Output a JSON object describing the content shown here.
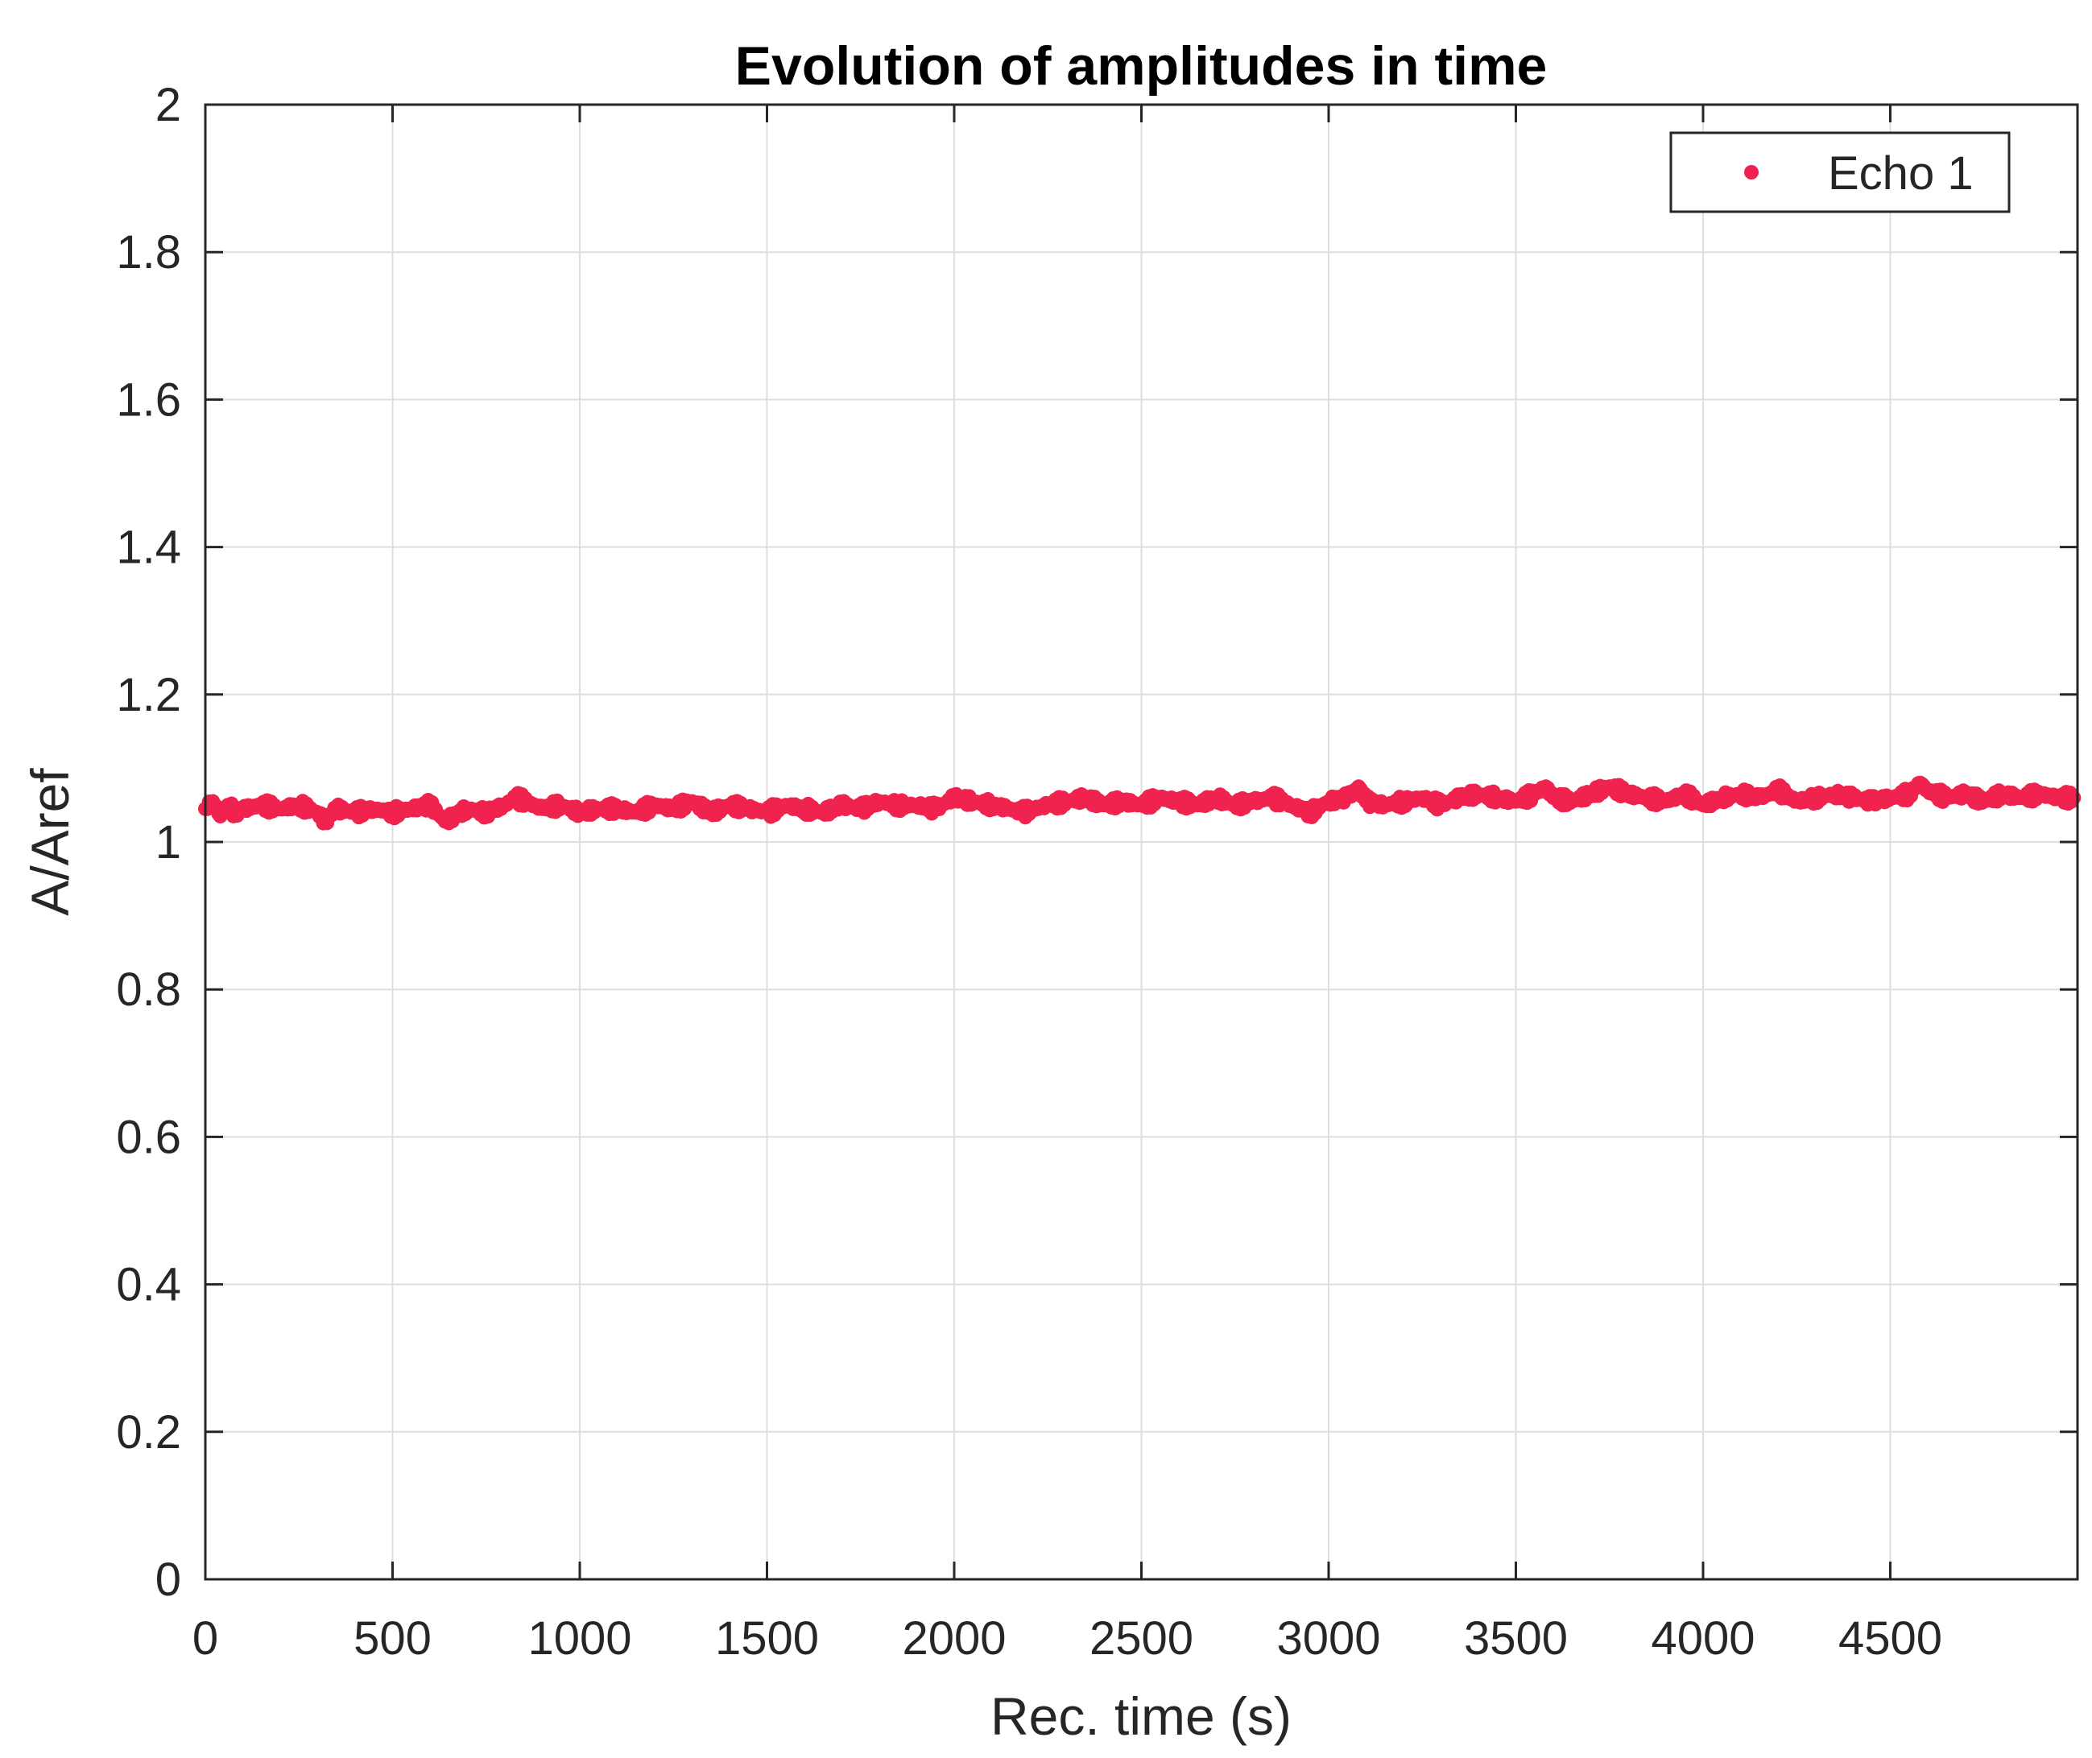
{
  "chart_data": {
    "type": "scatter",
    "title": "Evolution of amplitudes in time",
    "xlabel": "Rec. time (s)",
    "ylabel": "A/Aref",
    "xlim": [
      0,
      5000
    ],
    "ylim": [
      0,
      2
    ],
    "xticks": [
      0,
      500,
      1000,
      1500,
      2000,
      2500,
      3000,
      3500,
      4000,
      4500
    ],
    "xtick_labels": [
      "0",
      "500",
      "1000",
      "1500",
      "2000",
      "2500",
      "3000",
      "3500",
      "4000",
      "4500"
    ],
    "yticks": [
      0,
      0.2,
      0.4,
      0.6,
      0.8,
      1,
      1.2,
      1.4,
      1.6,
      1.8,
      2
    ],
    "ytick_labels": [
      "0",
      "0.2",
      "0.4",
      "0.6",
      "0.8",
      "1",
      "1.2",
      "1.4",
      "1.6",
      "1.8",
      "2"
    ],
    "grid": true,
    "legend_position": "top-right",
    "series": [
      {
        "name": "Echo 1",
        "color": "#f0224e",
        "x": [
          0,
          20,
          40,
          60,
          80,
          100,
          150,
          200,
          250,
          300,
          320,
          350,
          400,
          450,
          500,
          550,
          600,
          640,
          700,
          750,
          800,
          830,
          900,
          950,
          1000,
          1050,
          1100,
          1150,
          1200,
          1250,
          1300,
          1350,
          1400,
          1450,
          1500,
          1550,
          1600,
          1650,
          1700,
          1750,
          1800,
          1850,
          1900,
          1950,
          2000,
          2050,
          2100,
          2150,
          2180,
          2250,
          2300,
          2350,
          2400,
          2450,
          2500,
          2550,
          2600,
          2650,
          2700,
          2750,
          2800,
          2850,
          2900,
          2950,
          3000,
          3050,
          3080,
          3100,
          3150,
          3200,
          3250,
          3300,
          3350,
          3400,
          3450,
          3500,
          3550,
          3580,
          3600,
          3650,
          3700,
          3750,
          3800,
          3850,
          3900,
          3950,
          4000,
          4050,
          4100,
          4150,
          4200,
          4250,
          4300,
          4350,
          4400,
          4450,
          4500,
          4550,
          4580,
          4600,
          4650,
          4700,
          4750,
          4800,
          4850,
          4900,
          4950,
          4990
        ],
        "y": [
          1.045,
          1.055,
          1.035,
          1.05,
          1.04,
          1.045,
          1.05,
          1.045,
          1.05,
          1.04,
          1.028,
          1.045,
          1.04,
          1.045,
          1.04,
          1.045,
          1.05,
          1.028,
          1.045,
          1.04,
          1.05,
          1.06,
          1.045,
          1.05,
          1.04,
          1.045,
          1.045,
          1.04,
          1.05,
          1.045,
          1.055,
          1.04,
          1.05,
          1.045,
          1.04,
          1.05,
          1.045,
          1.04,
          1.05,
          1.045,
          1.055,
          1.05,
          1.05,
          1.045,
          1.06,
          1.055,
          1.05,
          1.045,
          1.04,
          1.05,
          1.055,
          1.06,
          1.05,
          1.055,
          1.05,
          1.06,
          1.055,
          1.05,
          1.06,
          1.05,
          1.055,
          1.06,
          1.05,
          1.04,
          1.055,
          1.06,
          1.075,
          1.055,
          1.05,
          1.055,
          1.06,
          1.05,
          1.06,
          1.065,
          1.06,
          1.055,
          1.065,
          1.075,
          1.06,
          1.055,
          1.065,
          1.075,
          1.065,
          1.06,
          1.055,
          1.065,
          1.05,
          1.06,
          1.065,
          1.06,
          1.07,
          1.055,
          1.06,
          1.065,
          1.06,
          1.055,
          1.06,
          1.065,
          1.08,
          1.07,
          1.06,
          1.065,
          1.055,
          1.065,
          1.06,
          1.065,
          1.06,
          1.06
        ]
      }
    ]
  }
}
